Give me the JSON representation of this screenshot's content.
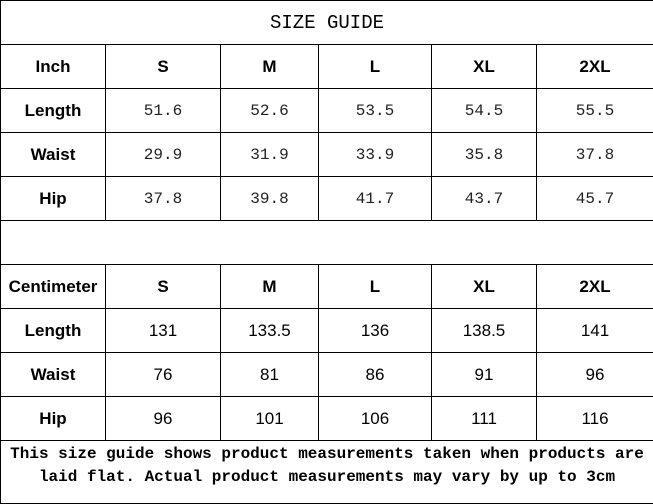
{
  "title": "SIZE GUIDE",
  "inch_table": {
    "header": [
      "Inch",
      "S",
      "M",
      "L",
      "XL",
      "2XL"
    ],
    "rows": [
      {
        "label": "Length",
        "values": [
          "51.6",
          "52.6",
          "53.5",
          "54.5",
          "55.5"
        ]
      },
      {
        "label": "Waist",
        "values": [
          "29.9",
          "31.9",
          "33.9",
          "35.8",
          "37.8"
        ]
      },
      {
        "label": "Hip",
        "values": [
          "37.8",
          "39.8",
          "41.7",
          "43.7",
          "45.7"
        ]
      }
    ]
  },
  "cm_table": {
    "header": [
      "Centimeter",
      "S",
      "M",
      "L",
      "XL",
      "2XL"
    ],
    "rows": [
      {
        "label": "Length",
        "values": [
          "131",
          "133.5",
          "136",
          "138.5",
          "141"
        ]
      },
      {
        "label": "Waist",
        "values": [
          "76",
          "81",
          "86",
          "91",
          "96"
        ]
      },
      {
        "label": "Hip",
        "values": [
          "96",
          "101",
          "106",
          "111",
          "116"
        ]
      }
    ]
  },
  "note": "This size guide shows product measurements taken when products are laid flat. Actual product measurements may vary by up to 3cm"
}
